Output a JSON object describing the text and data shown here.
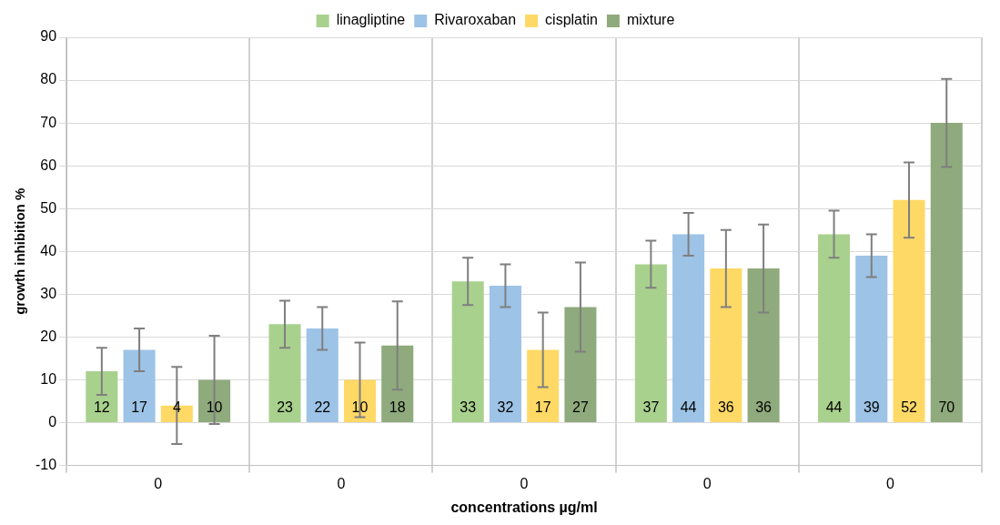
{
  "chart_data": {
    "type": "bar",
    "xlabel": "concentrations µg/ml",
    "ylabel": "growth inhibition %",
    "categories": [
      "0",
      "0",
      "0",
      "0",
      "0"
    ],
    "series": [
      {
        "name": "linagliptine",
        "color": "#a9d18e",
        "values": [
          12,
          23,
          33,
          37,
          44
        ],
        "errors": [
          5.5,
          5.5,
          5.5,
          5.5,
          5.5
        ]
      },
      {
        "name": "Rivaroxaban",
        "color": "#9dc3e6",
        "values": [
          17,
          22,
          32,
          44,
          39
        ],
        "errors": [
          5,
          5,
          5,
          5,
          5
        ]
      },
      {
        "name": "cisplatin",
        "color": "#ffd966",
        "values": [
          4,
          10,
          17,
          36,
          52
        ],
        "errors": [
          9,
          8.7,
          8.7,
          9,
          8.8
        ]
      },
      {
        "name": "mixture",
        "color": "#8faa7c",
        "values": [
          10,
          18,
          27,
          36,
          70
        ],
        "errors": [
          10.3,
          10.3,
          10.4,
          10.3,
          10.3
        ]
      }
    ],
    "ylim": [
      -10,
      90
    ],
    "yticks": [
      -10,
      0,
      10,
      20,
      30,
      40,
      50,
      60,
      70,
      80,
      90
    ],
    "grid": true,
    "legend": "top",
    "data_labels": true
  }
}
